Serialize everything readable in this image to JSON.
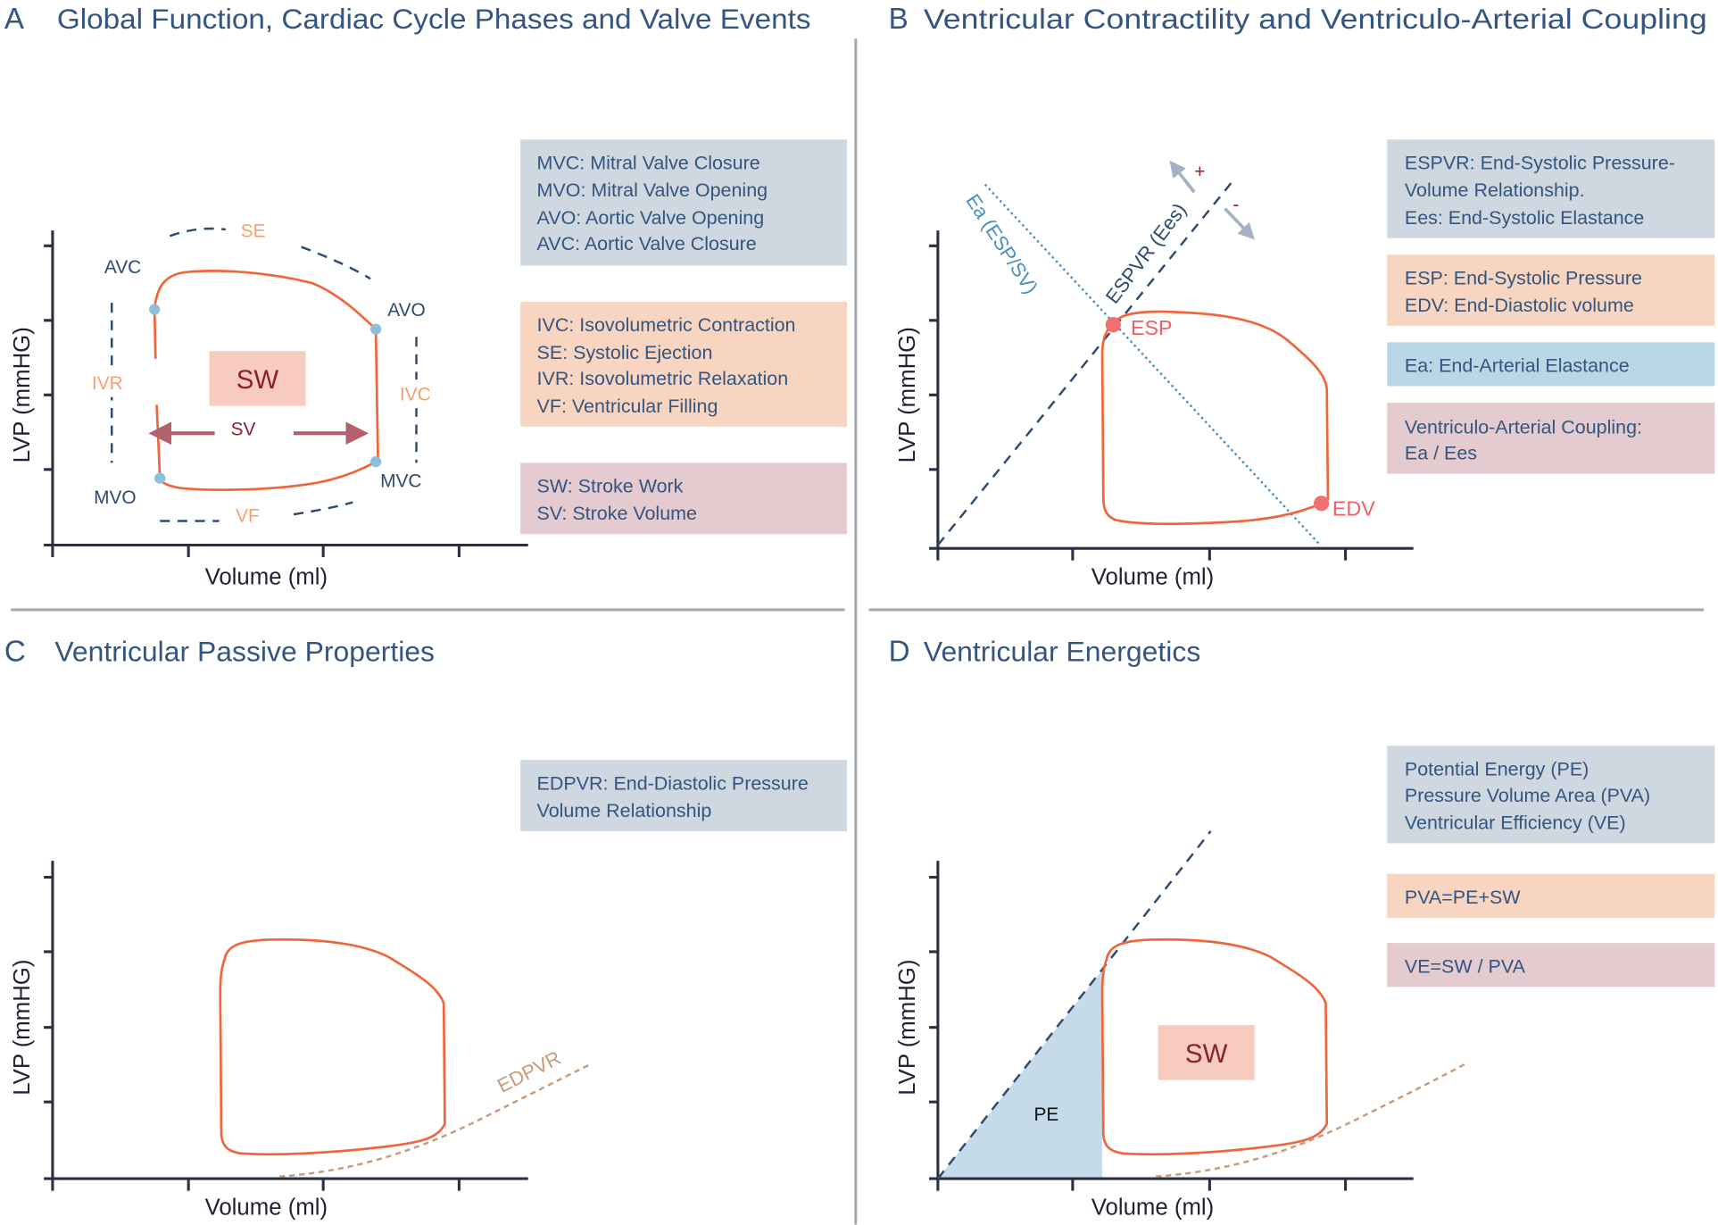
{
  "panels": {
    "a": {
      "letter": "A",
      "title": "Global Function, Cardiac Cycle Phases and Valve Events",
      "xlabel": "Volume (ml)",
      "ylabel": "LVP (mmHG)",
      "points": {
        "avc": "AVC",
        "avo": "AVO",
        "mvc": "MVC",
        "mvo": "MVO"
      },
      "phases": {
        "se": "SE",
        "ivr": "IVR",
        "ivc": "IVC",
        "vf": "VF"
      },
      "sw": "SW",
      "sv": "SV",
      "legend": [
        [
          "MVC: Mitral Valve Closure",
          "MVO: Mitral Valve Opening",
          "AVO: Aortic Valve Opening",
          "AVC: Aortic Valve Closure"
        ],
        [
          "IVC: Isovolumetric Contraction",
          "SE: Systolic Ejection",
          "IVR: Isovolumetric Relaxation",
          "VF: Ventricular Filling"
        ],
        [
          "SW: Stroke Work",
          "SV: Stroke Volume"
        ]
      ]
    },
    "b": {
      "letter": "B",
      "title": "Ventricular Contractility and Ventriculo-Arterial Coupling",
      "xlabel": "Volume (ml)",
      "ylabel": "LVP (mmHG)",
      "espvr_label": "ESPVR (Ees)",
      "ea_label": "Ea (ESP/SV)",
      "esp": "ESP",
      "edv": "EDV",
      "plus": "+",
      "minus": "-",
      "legend": [
        [
          "ESPVR: End-Systolic Pressure-",
          "Volume Relationship.",
          "Ees: End-Systolic Elastance"
        ],
        [
          "ESP: End-Systolic Pressure",
          "EDV: End-Diastolic volume"
        ],
        [
          "Ea: End-Arterial Elastance"
        ],
        [
          "Ventriculo-Arterial Coupling:",
          "Ea / Ees"
        ]
      ]
    },
    "c": {
      "letter": "C",
      "title": "Ventricular Passive Properties",
      "xlabel": "Volume (ml)",
      "ylabel": "LVP (mmHG)",
      "edpvr": "EDPVR",
      "legend": [
        [
          "EDPVR: End-Diastolic Pressure",
          "Volume Relationship"
        ]
      ]
    },
    "d": {
      "letter": "D",
      "title": "Ventricular Energetics",
      "xlabel": "Volume (ml)",
      "ylabel": "LVP (mmHG)",
      "pe": "PE",
      "sw": "SW",
      "legend": [
        [
          "Potential Energy (PE)",
          "Pressure Volume Area (PVA)",
          "Ventricular Efficiency (VE)"
        ],
        [
          "PVA=PE+SW"
        ],
        [
          "VE=SW / PVA"
        ]
      ]
    }
  },
  "colors": {
    "blue_box": "#cfd8e1",
    "orange_box": "#f8d5c0",
    "light_blue_box": "#b9d7e6",
    "pink_box": "#e3cbd0",
    "loop": "#f0663c"
  }
}
